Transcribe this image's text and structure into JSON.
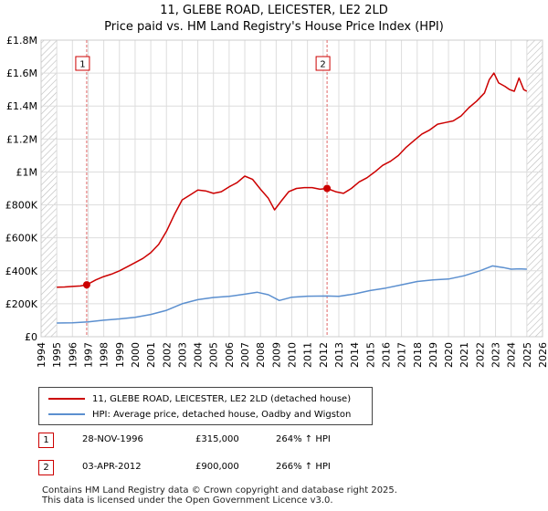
{
  "header": {
    "title": "11, GLEBE ROAD, LEICESTER, LE2 2LD",
    "subtitle": "Price paid vs. HM Land Registry's House Price Index (HPI)"
  },
  "chart_data": {
    "type": "line",
    "title": "11, GLEBE ROAD, LEICESTER, LE2 2LD",
    "subtitle": "Price paid vs. HM Land Registry's House Price Index (HPI)",
    "xlim": [
      1994,
      2026
    ],
    "ylim": [
      0,
      1800000
    ],
    "x_ticks": [
      1994,
      1995,
      1996,
      1997,
      1998,
      1999,
      2000,
      2001,
      2002,
      2003,
      2004,
      2005,
      2006,
      2007,
      2008,
      2009,
      2010,
      2011,
      2012,
      2013,
      2014,
      2015,
      2016,
      2017,
      2018,
      2019,
      2020,
      2021,
      2022,
      2023,
      2024,
      2025,
      2026
    ],
    "y_ticks": [
      {
        "value": 0,
        "label": "£0"
      },
      {
        "value": 200000,
        "label": "£200K"
      },
      {
        "value": 400000,
        "label": "£400K"
      },
      {
        "value": 600000,
        "label": "£600K"
      },
      {
        "value": 800000,
        "label": "£800K"
      },
      {
        "value": 1000000,
        "label": "£1M"
      },
      {
        "value": 1200000,
        "label": "£1.2M"
      },
      {
        "value": 1400000,
        "label": "£1.4M"
      },
      {
        "value": 1600000,
        "label": "£1.6M"
      },
      {
        "value": 1800000,
        "label": "£1.8M"
      }
    ],
    "grid": true,
    "hatched_periods": [
      {
        "from": 1994,
        "to": 1995.0
      },
      {
        "from": 2025.0,
        "to": 2026
      }
    ],
    "sale_markers": [
      {
        "label": "1",
        "x": 1996.91,
        "y": 315000
      },
      {
        "label": "2",
        "x": 2012.25,
        "y": 900000
      }
    ],
    "series": [
      {
        "name": "11, GLEBE ROAD, LEICESTER, LE2 2LD (detached house)",
        "color": "#cc0000",
        "x": [
          1995.0,
          1995.5,
          1996.0,
          1996.5,
          1996.91,
          1997.5,
          1998.0,
          1998.5,
          1999.0,
          1999.5,
          2000.0,
          2000.5,
          2001.0,
          2001.5,
          2002.0,
          2002.5,
          2003.0,
          2003.5,
          2004.0,
          2004.5,
          2005.0,
          2005.5,
          2006.0,
          2006.5,
          2007.0,
          2007.5,
          2008.0,
          2008.5,
          2008.9,
          2009.3,
          2009.8,
          2010.3,
          2010.8,
          2011.3,
          2011.8,
          2012.25,
          2012.8,
          2013.3,
          2013.8,
          2014.3,
          2014.8,
          2015.3,
          2015.8,
          2016.3,
          2016.8,
          2017.3,
          2017.8,
          2018.3,
          2018.8,
          2019.3,
          2019.8,
          2020.3,
          2020.8,
          2021.3,
          2021.8,
          2022.3,
          2022.6,
          2022.9,
          2023.2,
          2023.6,
          2023.9,
          2024.2,
          2024.5,
          2024.8,
          2025.0
        ],
        "values": [
          300000,
          302000,
          305000,
          308000,
          315000,
          345000,
          365000,
          380000,
          400000,
          425000,
          450000,
          475000,
          510000,
          560000,
          640000,
          740000,
          830000,
          860000,
          890000,
          885000,
          870000,
          880000,
          910000,
          935000,
          975000,
          955000,
          895000,
          840000,
          770000,
          820000,
          880000,
          900000,
          905000,
          905000,
          895000,
          900000,
          880000,
          870000,
          900000,
          940000,
          965000,
          1000000,
          1040000,
          1065000,
          1100000,
          1150000,
          1190000,
          1230000,
          1255000,
          1290000,
          1300000,
          1310000,
          1340000,
          1390000,
          1430000,
          1480000,
          1560000,
          1600000,
          1540000,
          1520000,
          1500000,
          1490000,
          1570000,
          1500000,
          1490000
        ]
      },
      {
        "name": "HPI: Average price, detached house, Oadby and Wigston",
        "color": "#5b8fcf",
        "x": [
          1995.0,
          1996.0,
          1997.0,
          1998.0,
          1999.0,
          2000.0,
          2001.0,
          2002.0,
          2003.0,
          2004.0,
          2005.0,
          2006.0,
          2007.0,
          2007.8,
          2008.5,
          2009.2,
          2010.0,
          2011.0,
          2012.25,
          2013.0,
          2014.0,
          2015.0,
          2016.0,
          2017.0,
          2018.0,
          2019.0,
          2020.0,
          2021.0,
          2022.0,
          2022.8,
          2023.5,
          2024.0,
          2024.5,
          2025.0
        ],
        "values": [
          83000,
          85000,
          90000,
          100000,
          108000,
          118000,
          135000,
          160000,
          200000,
          225000,
          238000,
          245000,
          258000,
          270000,
          255000,
          220000,
          240000,
          246000,
          247000,
          245000,
          260000,
          280000,
          295000,
          315000,
          335000,
          345000,
          350000,
          370000,
          400000,
          430000,
          420000,
          410000,
          412000,
          410000
        ]
      }
    ]
  },
  "legend": {
    "items": [
      {
        "label": "11, GLEBE ROAD, LEICESTER, LE2 2LD (detached house)",
        "color": "#cc0000"
      },
      {
        "label": "HPI: Average price, detached house, Oadby and Wigston",
        "color": "#5b8fcf"
      }
    ]
  },
  "sales": [
    {
      "num": "1",
      "date": "28-NOV-1996",
      "price": "£315,000",
      "hpi": "264% ↑ HPI"
    },
    {
      "num": "2",
      "date": "03-APR-2012",
      "price": "£900,000",
      "hpi": "266% ↑ HPI"
    }
  ],
  "footer": {
    "line1": "Contains HM Land Registry data © Crown copyright and database right 2025.",
    "line2": "This data is licensed under the Open Government Licence v3.0."
  }
}
